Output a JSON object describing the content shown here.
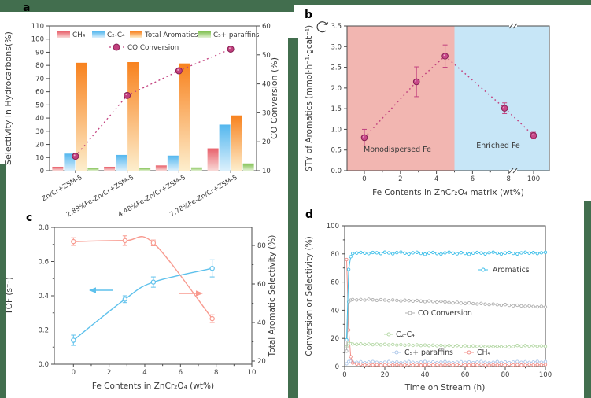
{
  "figure": {
    "frame_color": "#426e4e",
    "background": "#ffffff",
    "axis_color": "#4a4a4a"
  },
  "chart_data": [
    {
      "id": "a",
      "type": "bar",
      "panel_label": "a",
      "ylabel_left": "Selectivity in Hydrocarbons(%)",
      "ylabel_right": "CO Conversion (%)",
      "ylim_left": [
        0,
        110
      ],
      "yticks_left": [
        0,
        10,
        20,
        30,
        40,
        50,
        60,
        70,
        80,
        90,
        100,
        110
      ],
      "ylim_right": [
        10,
        60
      ],
      "yticks_right": [
        10,
        20,
        30,
        40,
        50,
        60
      ],
      "categories": [
        "Zn/Cr+ZSM-5",
        "2.89%Fe-Zn/Cr+ZSM-5",
        "4.48%Fe-Zn/Cr+ZSM-5",
        "7.78%Fe-Zn/Cr+ZSM-5"
      ],
      "bar_series": [
        {
          "name": "CH₄",
          "color": "#e8606b",
          "color_fade": "#f9d9d7",
          "values": [
            3,
            3,
            4,
            17
          ]
        },
        {
          "name": "C₂-C₄",
          "color": "#54b7ee",
          "color_fade": "#dcf0fc",
          "values": [
            13,
            12,
            11.5,
            35
          ]
        },
        {
          "name": "Total Aromatics",
          "color": "#f8821e",
          "color_fade": "#fdeecd",
          "values": [
            82,
            82.5,
            81.5,
            42
          ]
        },
        {
          "name": "C₅+ paraffins",
          "color": "#7fc04f",
          "color_fade": "#e3f1d4",
          "values": [
            2,
            2,
            2.5,
            5.5
          ]
        }
      ],
      "line_series": {
        "name": "CO Conversion",
        "color": "#c2407e",
        "edge": "#872054",
        "values": [
          15,
          36,
          44.5,
          52
        ]
      }
    },
    {
      "id": "b",
      "type": "scatter",
      "panel_label": "b",
      "ylabel": "STY of Aromatics (mmol·h⁻¹·gcat⁻¹)",
      "xlabel": "Fe Contents in ZnCr₂O₄ matrix (wt%)",
      "ylim": [
        0,
        3.5
      ],
      "yticks": [
        0,
        0.5,
        1,
        1.5,
        2,
        2.5,
        3,
        3.5
      ],
      "xticks": [
        0,
        2,
        4,
        6,
        8
      ],
      "xtick_after_break": "100",
      "points": {
        "x": [
          0,
          2.89,
          4.48,
          7.78,
          100
        ],
        "y": [
          0.8,
          2.15,
          2.77,
          1.51,
          0.85
        ],
        "yerr": [
          0.2,
          0.36,
          0.27,
          0.13,
          0.08
        ]
      },
      "marker_color": "#c9498a",
      "marker_edge": "#872054",
      "line_color": "#c2407e",
      "region_boundary_x": 5,
      "regions": [
        {
          "label": "Monodispersed Fe",
          "fill": "#f2b6b1",
          "text_color": "#f04134"
        },
        {
          "label": "Enriched  Fe",
          "fill": "#c7e6f7",
          "text_color": "#45bdf0"
        }
      ]
    },
    {
      "id": "c",
      "type": "line",
      "panel_label": "c",
      "ylabel_left": "TOF (s⁻¹)",
      "ylabel_right": "Total Aromatic Selectivity (%)",
      "xlabel": "Fe Contents in ZnCr₂O₄ (wt%)",
      "ylim_left": [
        0,
        0.8
      ],
      "yticks_left": [
        0,
        0.2,
        0.4,
        0.6,
        0.8
      ],
      "yticks_right": [
        20,
        40,
        60,
        80
      ],
      "xticks": [
        0,
        2,
        4,
        6,
        8,
        10
      ],
      "series_left": {
        "name": "TOF",
        "color": "#5ec1ec",
        "x": [
          0,
          2.89,
          4.48,
          7.78
        ],
        "y": [
          0.14,
          0.38,
          0.48,
          0.56
        ],
        "yerr": [
          0.03,
          0.02,
          0.03,
          0.05
        ]
      },
      "series_right": {
        "name": "Total Aromatic Selectivity",
        "color": "#f89a8f",
        "x": [
          0,
          2.89,
          4.48,
          7.78
        ],
        "y": [
          82,
          82.5,
          81.3,
          42
        ],
        "yerr": [
          2,
          2.5,
          1.5,
          2
        ]
      }
    },
    {
      "id": "d",
      "type": "line",
      "panel_label": "d",
      "ylabel": "Conversion or Selectivity (%)",
      "xlabel": "Time on Stream (h)",
      "ylim": [
        0,
        100
      ],
      "yticks": [
        0,
        20,
        40,
        60,
        80,
        100
      ],
      "xticks": [
        0,
        20,
        40,
        60,
        80,
        100
      ],
      "time": [
        1,
        2,
        3,
        4,
        6,
        8,
        10,
        12,
        14,
        16,
        18,
        20,
        22,
        24,
        26,
        28,
        30,
        32,
        34,
        36,
        38,
        40,
        42,
        44,
        46,
        48,
        50,
        52,
        54,
        56,
        58,
        60,
        62,
        64,
        66,
        68,
        70,
        72,
        74,
        76,
        78,
        80,
        82,
        84,
        86,
        88,
        90,
        92,
        94,
        96,
        98,
        100
      ],
      "series": [
        {
          "name": "C₅+ paraffins",
          "color": "#adc7e9",
          "values": [
            2,
            3.5,
            3.8,
            3.2,
            3.0,
            3.4,
            2.8,
            3.2,
            3.6,
            3.0,
            2.6,
            3.1,
            3.5,
            2.9,
            3.3,
            2.7,
            3.1,
            3.5,
            3.0,
            2.6,
            3.2,
            3.6,
            2.9,
            3.3,
            2.8,
            3.2,
            3.5,
            3.0,
            2.7,
            3.1,
            3.4,
            2.9,
            3.3,
            2.8,
            3.2,
            3.6,
            3.0,
            2.7,
            3.1,
            3.5,
            2.9,
            3.3,
            2.8,
            3.2,
            3.6,
            3.0,
            3.4,
            2.9,
            3.3,
            3.7,
            3.1,
            3.5
          ]
        },
        {
          "name": "CH₄",
          "color": "#f2908a",
          "values": [
            76,
            26,
            7,
            2.5,
            1.8,
            1.5,
            1.2,
            1.4,
            1.1,
            1.3,
            1.0,
            1.2,
            1.4,
            1.1,
            1.3,
            1.0,
            1.2,
            1.5,
            1.1,
            1.3,
            1.0,
            1.2,
            1.4,
            1.1,
            1.3,
            1.0,
            1.2,
            1.4,
            1.1,
            1.3,
            1.5,
            1.2,
            1.0,
            1.3,
            1.1,
            1.4,
            1.2,
            1.0,
            1.3,
            1.1,
            1.4,
            1.2,
            1.5,
            1.1,
            1.3,
            1.0,
            1.2,
            1.4,
            1.1,
            1.3,
            1.2,
            1.4
          ]
        },
        {
          "name": "C₂-C₄",
          "color": "#b5d8a6",
          "values": [
            14,
            16.5,
            16.2,
            16.0,
            15.8,
            16.1,
            15.7,
            16.0,
            15.6,
            15.9,
            15.5,
            15.8,
            15.4,
            15.7,
            15.3,
            15.6,
            15.2,
            15.5,
            15.1,
            15.4,
            15.0,
            15.3,
            14.9,
            15.2,
            14.8,
            15.1,
            14.7,
            15.0,
            14.6,
            14.9,
            14.5,
            14.8,
            14.4,
            14.7,
            14.3,
            14.6,
            14.2,
            14.5,
            14.1,
            14.4,
            14.0,
            14.3,
            13.9,
            14.2,
            15.0,
            14.6,
            14.9,
            14.5,
            14.8,
            14.4,
            14.7,
            14.3
          ]
        },
        {
          "name": "CO Conversion",
          "color": "#b0b0b0",
          "values": [
            11,
            46,
            47.2,
            47.6,
            47.3,
            47.6,
            47.2,
            47.8,
            47.4,
            47.0,
            47.5,
            47.2,
            46.8,
            47.3,
            47.0,
            46.6,
            47.1,
            46.8,
            46.4,
            46.9,
            46.5,
            46.1,
            46.6,
            46.2,
            45.8,
            46.3,
            45.9,
            45.5,
            45.2,
            45.6,
            45.1,
            44.8,
            45.2,
            44.7,
            44.4,
            44.8,
            44.3,
            44.0,
            44.4,
            43.9,
            43.6,
            44.0,
            43.5,
            43.2,
            43.6,
            43.1,
            42.8,
            43.2,
            42.7,
            42.4,
            42.8,
            42.3
          ]
        },
        {
          "name": "Aromatics",
          "color": "#3fbfe9",
          "values": [
            19,
            69,
            78,
            80.3,
            80.6,
            81.0,
            80.5,
            80.2,
            81.0,
            80.8,
            80.3,
            81.2,
            80.7,
            80.1,
            80.9,
            81.3,
            80.5,
            80.0,
            80.8,
            81.1,
            80.4,
            79.8,
            80.6,
            81.0,
            80.3,
            79.9,
            80.7,
            81.2,
            80.5,
            80.1,
            80.9,
            80.4,
            79.8,
            80.5,
            81.0,
            80.6,
            80.0,
            80.8,
            81.2,
            80.5,
            79.9,
            80.6,
            81.0,
            80.4,
            80.0,
            80.7,
            81.1,
            80.5,
            80.9,
            80.3,
            80.8,
            81.1
          ]
        }
      ]
    }
  ]
}
